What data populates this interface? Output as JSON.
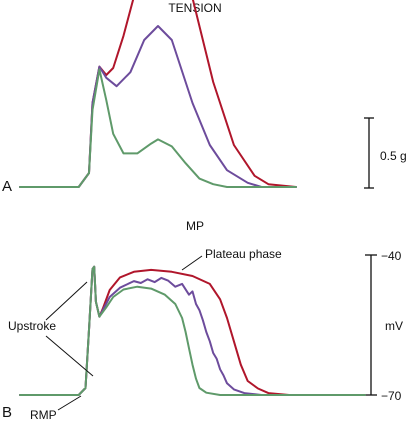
{
  "chart_data": [
    {
      "panel": "A",
      "type": "line",
      "title": "TENSION",
      "scale_bar": {
        "label": "0.5 g",
        "value": 0.5,
        "unit": "g"
      },
      "series": [
        {
          "color": "#b0162b",
          "points": [
            [
              0,
              0.0
            ],
            [
              0.17,
              0.0
            ],
            [
              0.2,
              0.1
            ],
            [
              0.21,
              0.6
            ],
            [
              0.23,
              0.86
            ],
            [
              0.25,
              0.8
            ],
            [
              0.27,
              0.85
            ],
            [
              0.3,
              1.08
            ],
            [
              0.34,
              1.45
            ],
            [
              0.38,
              1.8
            ],
            [
              0.41,
              1.93
            ],
            [
              0.44,
              1.82
            ],
            [
              0.5,
              1.35
            ],
            [
              0.56,
              0.75
            ],
            [
              0.62,
              0.3
            ],
            [
              0.68,
              0.08
            ],
            [
              0.72,
              0.02
            ],
            [
              0.8,
              0.0
            ]
          ]
        },
        {
          "color": "#6d4c9c",
          "points": [
            [
              0,
              0.0
            ],
            [
              0.17,
              0.0
            ],
            [
              0.2,
              0.1
            ],
            [
              0.21,
              0.6
            ],
            [
              0.23,
              0.86
            ],
            [
              0.25,
              0.78
            ],
            [
              0.28,
              0.72
            ],
            [
              0.32,
              0.82
            ],
            [
              0.36,
              1.05
            ],
            [
              0.4,
              1.15
            ],
            [
              0.44,
              1.05
            ],
            [
              0.5,
              0.6
            ],
            [
              0.55,
              0.3
            ],
            [
              0.6,
              0.12
            ],
            [
              0.66,
              0.03
            ],
            [
              0.7,
              0.0
            ],
            [
              0.8,
              0.0
            ]
          ]
        },
        {
          "color": "#5f9a6a",
          "points": [
            [
              0,
              0.0
            ],
            [
              0.17,
              0.0
            ],
            [
              0.2,
              0.1
            ],
            [
              0.21,
              0.55
            ],
            [
              0.23,
              0.84
            ],
            [
              0.25,
              0.62
            ],
            [
              0.27,
              0.38
            ],
            [
              0.3,
              0.24
            ],
            [
              0.34,
              0.24
            ],
            [
              0.38,
              0.31
            ],
            [
              0.4,
              0.34
            ],
            [
              0.44,
              0.29
            ],
            [
              0.48,
              0.17
            ],
            [
              0.52,
              0.06
            ],
            [
              0.56,
              0.02
            ],
            [
              0.6,
              0.0
            ],
            [
              0.8,
              0.0
            ]
          ]
        }
      ]
    },
    {
      "panel": "B",
      "type": "line",
      "title": "MP",
      "ylabel": "mV",
      "yticks": [
        "−40",
        "−70"
      ],
      "ylim": [
        -70,
        -40
      ],
      "annotations": [
        "Plateau phase",
        "Upstroke",
        "RMP"
      ],
      "series": [
        {
          "color": "#b0162b",
          "points": [
            [
              0,
              -70
            ],
            [
              0.17,
              -70
            ],
            [
              0.19,
              -68.5
            ],
            [
              0.2,
              -56
            ],
            [
              0.21,
              -43
            ],
            [
              0.215,
              -42.5
            ],
            [
              0.22,
              -50
            ],
            [
              0.23,
              -53.2
            ],
            [
              0.24,
              -51.5
            ],
            [
              0.26,
              -47.5
            ],
            [
              0.29,
              -44.8
            ],
            [
              0.33,
              -43.6
            ],
            [
              0.38,
              -43.2
            ],
            [
              0.44,
              -43.6
            ],
            [
              0.5,
              -44.5
            ],
            [
              0.55,
              -46.2
            ],
            [
              0.58,
              -49.5
            ],
            [
              0.6,
              -53.5
            ],
            [
              0.62,
              -58.5
            ],
            [
              0.64,
              -63.5
            ],
            [
              0.66,
              -67
            ],
            [
              0.69,
              -68.6
            ],
            [
              0.72,
              -69.6
            ],
            [
              0.78,
              -70
            ],
            [
              1.0,
              -70
            ]
          ]
        },
        {
          "color": "#6d4c9c",
          "points": [
            [
              0,
              -70
            ],
            [
              0.17,
              -70
            ],
            [
              0.19,
              -68.5
            ],
            [
              0.2,
              -56
            ],
            [
              0.21,
              -43
            ],
            [
              0.215,
              -42.5
            ],
            [
              0.22,
              -50
            ],
            [
              0.23,
              -53.2
            ],
            [
              0.24,
              -51.8
            ],
            [
              0.26,
              -49
            ],
            [
              0.29,
              -47
            ],
            [
              0.31,
              -46.3
            ],
            [
              0.33,
              -45.6
            ],
            [
              0.35,
              -46.0
            ],
            [
              0.37,
              -45.2
            ],
            [
              0.39,
              -45.8
            ],
            [
              0.41,
              -44.9
            ],
            [
              0.43,
              -45.5
            ],
            [
              0.45,
              -46.8
            ],
            [
              0.47,
              -46.2
            ],
            [
              0.49,
              -48.5
            ],
            [
              0.5,
              -47.8
            ],
            [
              0.51,
              -50.5
            ],
            [
              0.52,
              -51.8
            ],
            [
              0.53,
              -54
            ],
            [
              0.54,
              -56.5
            ],
            [
              0.55,
              -58.5
            ],
            [
              0.56,
              -61
            ],
            [
              0.57,
              -62.2
            ],
            [
              0.58,
              -64.5
            ],
            [
              0.59,
              -65.8
            ],
            [
              0.6,
              -67.5
            ],
            [
              0.62,
              -68.8
            ],
            [
              0.65,
              -69.6
            ],
            [
              0.7,
              -70
            ],
            [
              1.0,
              -70
            ]
          ]
        },
        {
          "color": "#5f9a6a",
          "points": [
            [
              0,
              -70
            ],
            [
              0.17,
              -70
            ],
            [
              0.19,
              -68.5
            ],
            [
              0.2,
              -56
            ],
            [
              0.21,
              -43
            ],
            [
              0.215,
              -42.5
            ],
            [
              0.22,
              -50
            ],
            [
              0.23,
              -53.2
            ],
            [
              0.25,
              -51.2
            ],
            [
              0.27,
              -49
            ],
            [
              0.3,
              -47.4
            ],
            [
              0.34,
              -46.8
            ],
            [
              0.38,
              -47.2
            ],
            [
              0.42,
              -48.5
            ],
            [
              0.45,
              -50.5
            ],
            [
              0.47,
              -53.5
            ],
            [
              0.48,
              -56.5
            ],
            [
              0.49,
              -60
            ],
            [
              0.5,
              -63.5
            ],
            [
              0.51,
              -66.5
            ],
            [
              0.52,
              -68.5
            ],
            [
              0.54,
              -69.5
            ],
            [
              0.58,
              -70
            ],
            [
              1.0,
              -70
            ]
          ]
        }
      ]
    }
  ],
  "figure": {
    "panel_a_letter": "A",
    "panel_b_letter": "B",
    "tension_title": "TENSION",
    "mp_title": "MP",
    "scale_label": "0.5 g",
    "plateau_label": "Plateau phase",
    "upstroke_label": "Upstroke",
    "rmp_label": "RMP",
    "mv_label": "mV",
    "tick_top_label": "−40",
    "tick_bottom_label": "−70"
  }
}
